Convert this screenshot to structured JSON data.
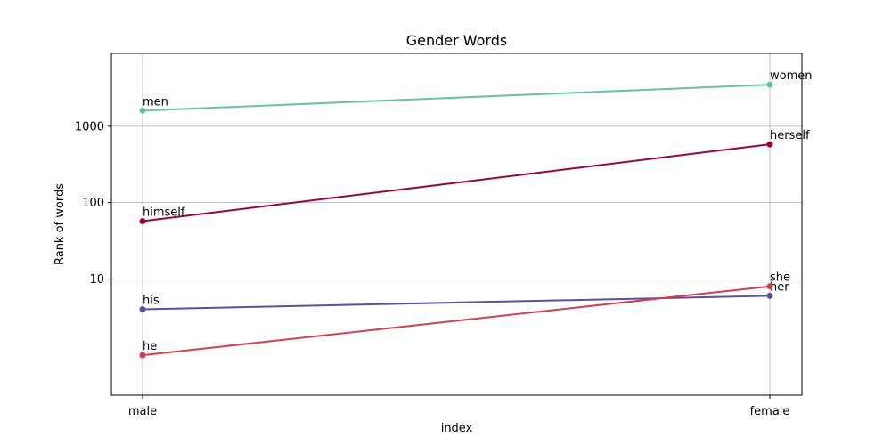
{
  "chart_data": {
    "type": "line",
    "title": "Gender Words",
    "xlabel": "index",
    "ylabel": "Rank of words",
    "y_scale": "log",
    "ylim": [
      0.3,
      9000
    ],
    "grid": true,
    "categories": [
      "male",
      "female"
    ],
    "y_ticks": [
      {
        "value": 10,
        "label": "10"
      },
      {
        "value": 100,
        "label": "100"
      },
      {
        "value": 1000,
        "label": "1000"
      }
    ],
    "series": [
      {
        "values": [
          1600,
          3500
        ],
        "labels": [
          "men",
          "women"
        ],
        "color": "#66c2a5"
      },
      {
        "values": [
          57,
          580
        ],
        "labels": [
          "himself",
          "herself"
        ],
        "color": "#9e0142"
      },
      {
        "values": [
          4,
          6
        ],
        "labels": [
          "his",
          "her"
        ],
        "color": "#5e4fa2"
      },
      {
        "values": [
          1,
          8
        ],
        "labels": [
          "he",
          "she"
        ],
        "color": "#d53e4f"
      }
    ]
  }
}
